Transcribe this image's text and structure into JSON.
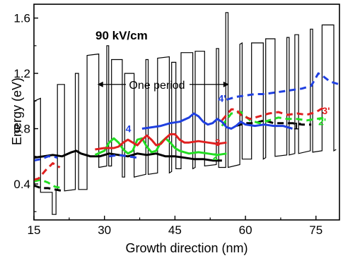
{
  "chart_data": {
    "type": "line",
    "xlabel": "Growth direction (nm)",
    "ylabel": "Energy (eV)",
    "xlim": [
      15,
      80
    ],
    "ylim": [
      0.14,
      1.7
    ],
    "xticks": [
      15,
      30,
      45,
      60,
      75
    ],
    "yticks": [
      0.4,
      0.8,
      1.2,
      1.6
    ],
    "tick_labels_x": [
      "15",
      "30",
      "45",
      "60",
      "75"
    ],
    "tick_labels_y": [
      "0.4",
      "0.8",
      "1.2",
      "1.6"
    ],
    "grid": false,
    "annotations": {
      "field": "90 kV/cm",
      "period": "One period",
      "period_from": 28.5,
      "period_to": 56.5,
      "period_y": 1.12
    },
    "potential": {
      "name": "conduction band",
      "color": "#000000",
      "x": [
        15.0,
        15.1,
        15.1,
        16.4,
        16.4,
        18.9,
        18.9,
        19.7,
        19.7,
        20.0,
        20.0,
        21.5,
        21.5,
        23.8,
        23.8,
        24.5,
        24.5,
        26.3,
        26.3,
        28.8,
        28.8,
        30.5,
        30.5,
        30.9,
        30.9,
        31.5,
        31.5,
        33.8,
        33.8,
        34.3,
        34.3,
        36.3,
        36.3,
        38.8,
        38.8,
        39.3,
        39.3,
        41.3,
        41.3,
        43.8,
        43.8,
        44.3,
        44.3,
        45.2,
        45.2,
        46.3,
        46.3,
        48.8,
        48.8,
        49.3,
        49.3,
        51.3,
        51.3,
        53.8,
        53.8,
        54.3,
        54.3,
        55.8,
        55.8,
        56.3,
        56.3,
        58.8,
        58.8,
        59.3,
        59.3,
        61.3,
        61.3,
        63.8,
        63.8,
        64.3,
        64.3,
        66.3,
        66.3,
        68.8,
        68.8,
        69.3,
        69.3,
        70.5,
        70.5,
        71.3,
        71.3,
        73.8,
        73.8,
        74.3,
        74.3,
        76.3,
        76.3,
        78.8,
        78.8,
        79.3
      ],
      "y": [
        0.38,
        0.38,
        1.0,
        1.02,
        0.34,
        0.34,
        0.18,
        0.18,
        0.36,
        0.36,
        1.12,
        1.12,
        0.35,
        0.36,
        1.2,
        1.2,
        0.36,
        0.36,
        1.33,
        1.34,
        0.52,
        0.53,
        1.4,
        1.4,
        0.53,
        0.53,
        1.3,
        1.3,
        0.45,
        0.45,
        1.2,
        1.2,
        0.45,
        0.47,
        1.3,
        1.3,
        0.47,
        0.48,
        1.31,
        1.32,
        0.48,
        0.49,
        1.28,
        1.28,
        0.51,
        0.51,
        1.35,
        1.35,
        0.51,
        0.52,
        1.36,
        1.36,
        0.53,
        0.54,
        1.38,
        1.38,
        0.52,
        0.52,
        1.64,
        1.64,
        0.52,
        0.54,
        1.41,
        1.42,
        0.58,
        0.58,
        1.42,
        1.42,
        0.58,
        0.59,
        1.45,
        1.45,
        0.6,
        0.61,
        1.46,
        1.46,
        0.61,
        0.62,
        1.48,
        1.48,
        0.62,
        0.64,
        1.52,
        1.52,
        0.63,
        0.64,
        1.55,
        1.55,
        0.64,
        0.65
      ]
    },
    "series": [
      {
        "name": "1",
        "color": "#000000",
        "dash": "solid",
        "x": [
          15,
          17,
          19,
          21,
          23,
          24,
          25,
          27,
          29,
          31,
          33,
          35,
          37,
          39,
          41,
          43,
          45,
          47,
          49,
          51,
          53,
          55
        ],
        "y": [
          0.59,
          0.6,
          0.61,
          0.6,
          0.63,
          0.64,
          0.62,
          0.6,
          0.6,
          0.62,
          0.61,
          0.6,
          0.62,
          0.61,
          0.62,
          0.6,
          0.6,
          0.59,
          0.58,
          0.58,
          0.57,
          0.57
        ]
      },
      {
        "name": "1'",
        "color": "#000000",
        "dash": "dashed",
        "x": [
          15,
          16.5,
          18,
          19.5,
          21,
          58,
          60,
          62,
          64,
          66,
          68,
          70,
          72,
          74
        ],
        "y": [
          0.39,
          0.37,
          0.37,
          0.36,
          0.35,
          0.82,
          0.84,
          0.84,
          0.86,
          0.84,
          0.84,
          0.84,
          0.83,
          0.83
        ]
      },
      {
        "name": "2",
        "color": "#22dd22",
        "dash": "solid",
        "x": [
          28,
          30,
          31,
          32,
          33,
          34,
          35,
          36,
          37,
          38,
          39,
          40,
          41,
          42,
          43,
          44,
          45,
          46,
          47,
          48,
          50,
          52,
          54,
          56
        ],
        "y": [
          0.61,
          0.64,
          0.7,
          0.73,
          0.7,
          0.65,
          0.62,
          0.64,
          0.72,
          0.73,
          0.67,
          0.63,
          0.64,
          0.7,
          0.73,
          0.7,
          0.66,
          0.64,
          0.63,
          0.62,
          0.63,
          0.62,
          0.61,
          0.62
        ]
      },
      {
        "name": "2'",
        "color": "#22dd22",
        "dash": "dashed",
        "x": [
          15,
          16.5,
          18,
          19.5,
          21,
          55,
          57,
          59,
          61,
          63,
          65,
          67,
          69,
          71,
          73,
          75,
          77
        ],
        "y": [
          0.42,
          0.43,
          0.41,
          0.38,
          0.37,
          0.82,
          0.91,
          0.92,
          0.86,
          0.84,
          0.86,
          0.88,
          0.87,
          0.87,
          0.86,
          0.87,
          0.88
        ]
      },
      {
        "name": "3",
        "color": "#e02020",
        "dash": "solid",
        "x": [
          28,
          30,
          32,
          33,
          34,
          35,
          36,
          37,
          38,
          39,
          40,
          41,
          42,
          43,
          44,
          45,
          46,
          47,
          48,
          50,
          52,
          54,
          56
        ],
        "y": [
          0.65,
          0.66,
          0.66,
          0.67,
          0.7,
          0.72,
          0.7,
          0.68,
          0.72,
          0.75,
          0.72,
          0.68,
          0.69,
          0.73,
          0.76,
          0.76,
          0.72,
          0.7,
          0.7,
          0.71,
          0.7,
          0.69,
          0.7
        ]
      },
      {
        "name": "3'",
        "color": "#e02020",
        "dash": "dashed",
        "x": [
          15,
          16,
          17.5,
          19,
          20.5,
          55,
          57,
          58,
          59,
          61,
          63,
          65,
          67,
          69,
          71,
          73,
          75,
          76.5
        ],
        "y": [
          0.43,
          0.44,
          0.5,
          0.55,
          0.52,
          0.86,
          0.94,
          0.94,
          0.9,
          0.87,
          0.89,
          0.91,
          0.92,
          0.9,
          0.91,
          0.9,
          0.92,
          0.95
        ]
      },
      {
        "name": "4",
        "color": "#2040e0",
        "dash": "solid",
        "x": [
          38,
          40,
          42,
          44,
          46,
          48,
          49,
          50,
          51,
          52,
          53,
          54,
          55,
          56,
          57,
          58,
          59,
          60,
          62,
          64,
          66,
          68,
          70
        ],
        "y": [
          0.8,
          0.81,
          0.82,
          0.84,
          0.85,
          0.88,
          0.91,
          0.89,
          0.85,
          0.83,
          0.84,
          0.87,
          0.85,
          0.81,
          0.8,
          0.82,
          0.85,
          0.83,
          0.82,
          0.83,
          0.82,
          0.82,
          0.8
        ]
      },
      {
        "name": "4'",
        "color": "#2040e0",
        "dash": "dashed",
        "x": [
          15,
          16.5,
          18,
          19,
          20,
          31,
          33,
          35,
          37,
          56,
          58,
          60,
          62,
          64,
          66,
          68,
          70,
          72,
          74,
          75.5,
          76.5,
          78,
          80
        ],
        "y": [
          0.57,
          0.58,
          0.6,
          0.6,
          0.59,
          0.6,
          0.61,
          0.6,
          0.59,
          1.01,
          1.03,
          1.04,
          1.05,
          1.05,
          1.06,
          1.07,
          1.08,
          1.09,
          1.11,
          1.2,
          1.18,
          1.14,
          1.12
        ]
      }
    ],
    "curve_labels": [
      {
        "text": "1'",
        "x": 70.2,
        "y": 0.82,
        "color": "#000000"
      },
      {
        "text": "2",
        "x": 53.0,
        "y": 0.6,
        "color": "#22dd22"
      },
      {
        "text": "2'",
        "x": 75.5,
        "y": 0.85,
        "color": "#22dd22"
      },
      {
        "text": "3",
        "x": 53.5,
        "y": 0.7,
        "color": "#e02020"
      },
      {
        "text": "3'",
        "x": 76.3,
        "y": 0.93,
        "color": "#e02020"
      },
      {
        "text": "4",
        "x": 34.5,
        "y": 0.8,
        "color": "#2040e0"
      },
      {
        "text": "4'",
        "x": 54.2,
        "y": 1.02,
        "color": "#2040e0"
      }
    ]
  }
}
